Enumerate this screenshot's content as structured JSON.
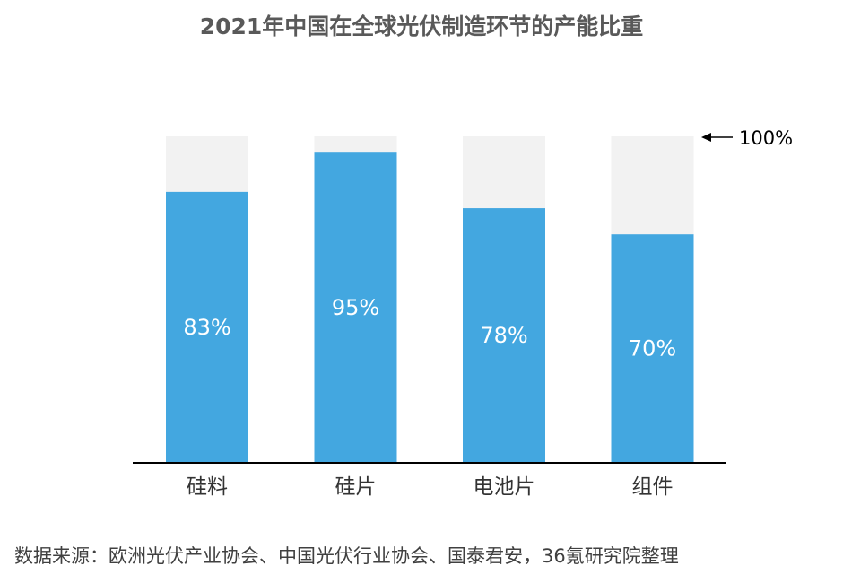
{
  "title": "2021年中国在全球光伏制造环节的产能比重",
  "source": "数据来源：欧洲光伏产业协会、中国光伏行业协会、国泰君安，36氪研究院整理",
  "colors": {
    "bar": "#43a7e0",
    "background_bar": "#f2f2f2",
    "axis": "#000000",
    "label": "#ffffff",
    "category": "#333333"
  },
  "chart_data": {
    "type": "bar",
    "categories": [
      "硅料",
      "硅片",
      "电池片",
      "组件"
    ],
    "values": [
      83,
      95,
      78,
      70
    ],
    "data_labels": [
      "83%",
      "95%",
      "78%",
      "70%"
    ],
    "reference_label": "100%",
    "ylim": [
      0,
      100
    ],
    "grid": false,
    "legend": "none"
  }
}
